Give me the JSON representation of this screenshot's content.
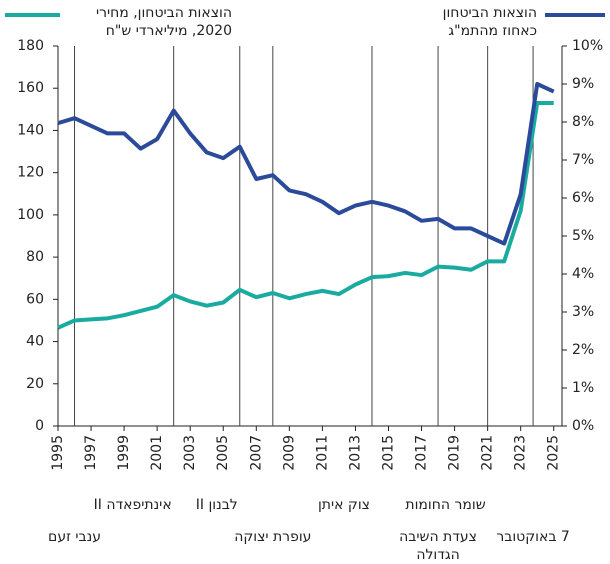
{
  "chart_data": {
    "type": "line",
    "x": [
      1995,
      1996,
      1997,
      1998,
      1999,
      2000,
      2001,
      2002,
      2003,
      2004,
      2005,
      2006,
      2007,
      2008,
      2009,
      2010,
      2011,
      2012,
      2013,
      2014,
      2015,
      2016,
      2017,
      2018,
      2019,
      2020,
      2021,
      2022,
      2023,
      2024,
      2025
    ],
    "xlim": [
      1995,
      2025.5
    ],
    "xticks": [
      1995,
      1997,
      1999,
      2001,
      2003,
      2005,
      2007,
      2009,
      2011,
      2013,
      2015,
      2017,
      2019,
      2021,
      2023,
      2025
    ],
    "ylim": [
      0,
      180
    ],
    "yticks": [
      0,
      20,
      40,
      60,
      80,
      100,
      120,
      140,
      160,
      180
    ],
    "y2lim": [
      0,
      10
    ],
    "y2ticks": [
      {
        "value": 0,
        "label": "0%"
      },
      {
        "value": 1,
        "label": "1%"
      },
      {
        "value": 2,
        "label": "2%"
      },
      {
        "value": 3,
        "label": "3%"
      },
      {
        "value": 4,
        "label": "4%"
      },
      {
        "value": 5,
        "label": "5%"
      },
      {
        "value": 6,
        "label": "6%"
      },
      {
        "value": 7,
        "label": "7%"
      },
      {
        "value": 8,
        "label": "8%"
      },
      {
        "value": 9,
        "label": "9%"
      },
      {
        "value": 10,
        "label": "10%"
      }
    ],
    "series": [
      {
        "name": "הוצאות הביטחון, מחירי\n2020, מיליארדי ש\"ח",
        "color": "#1aaba0",
        "values": [
          46.5,
          50,
          50.5,
          51,
          52.5,
          54.5,
          56.5,
          62,
          59,
          57,
          58.5,
          64.5,
          61,
          63,
          60.5,
          62.5,
          64,
          62.5,
          67,
          70.5,
          71,
          72.5,
          71.5,
          75.5,
          75,
          74,
          78,
          78,
          102,
          153,
          153
        ]
      },
      {
        "name": "הוצאות הביטחון\nכאחוז מהתמ\"ג",
        "color": "#2c4a9a",
        "axis": "y2",
        "values": [
          7.97,
          8.1,
          7.9,
          7.7,
          7.7,
          7.3,
          7.55,
          8.3,
          7.7,
          7.2,
          7.05,
          7.35,
          6.5,
          6.6,
          6.2,
          6.1,
          5.9,
          5.6,
          5.8,
          5.9,
          5.8,
          5.65,
          5.4,
          5.45,
          5.2,
          5.2,
          5.0,
          4.8,
          6.1,
          9.0,
          8.8
        ]
      }
    ],
    "annotations": [
      {
        "x": 1996,
        "text": "ענבי זעם"
      },
      {
        "x": 2002,
        "text": "אינתיפאדה II"
      },
      {
        "x": 2006,
        "text": "לבנון II"
      },
      {
        "x": 2008,
        "text": "עופרת יצוקה"
      },
      {
        "x": 2014,
        "text": "צוק איתן"
      },
      {
        "x": 2018,
        "text": "צעדת השיבה\nהגדולה"
      },
      {
        "x": 2021,
        "text": "שומר החומות"
      },
      {
        "x": 2023.75,
        "text": "7 באוקטובר"
      }
    ]
  }
}
